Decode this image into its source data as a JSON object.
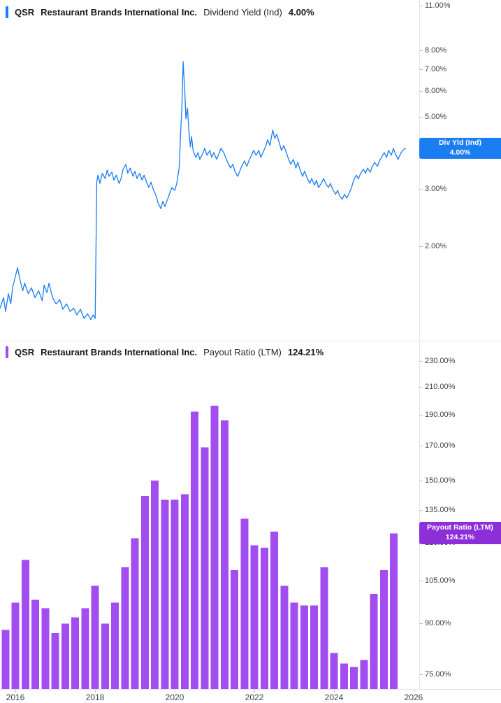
{
  "page": {
    "background": "#ffffff",
    "divider_color": "#e3e5e8",
    "axis_text_color": "#3e4147"
  },
  "top_chart": {
    "header": {
      "ticker": "QSR",
      "company": "Restaurant Brands International Inc.",
      "metric": "Dividend Yield (Ind)",
      "value": "4.00%"
    },
    "badge": {
      "line1": "Div Yld (Ind)",
      "line2": "4.00%",
      "color": "#1b7df2"
    }
  },
  "bottom_chart": {
    "header": {
      "ticker": "QSR",
      "company": "Restaurant Brands International Inc.",
      "metric": "Payout Ratio (LTM)",
      "value": "124.21%"
    },
    "badge": {
      "line1": "Payout Ratio (LTM)",
      "line2": "124.21%",
      "color": "#8d2fd9"
    }
  },
  "x_axis": {
    "labels": [
      "2016",
      "2018",
      "2020",
      "2022",
      "2024",
      "2026"
    ],
    "years": [
      2016,
      2018,
      2020,
      2022,
      2024,
      2026
    ]
  },
  "chart_data": [
    {
      "type": "line",
      "title": "QSR Dividend Yield (Ind)",
      "ylabel": "Dividend Yield (%)",
      "y_scale": "log",
      "grid": false,
      "legend_position": "none",
      "x_domain": [
        2015.61,
        2026.14
      ],
      "ylim": [
        1.025,
        11.43
      ],
      "current_value": 4.0,
      "y_ticks": [
        {
          "value": 11,
          "label": "11.00%"
        },
        {
          "value": 8,
          "label": "8.00%"
        },
        {
          "value": 7,
          "label": "7.00%"
        },
        {
          "value": 6,
          "label": "6.00%"
        },
        {
          "value": 5,
          "label": "5.00%"
        },
        {
          "value": 4,
          "label": "4.00%"
        },
        {
          "value": 3,
          "label": "3.00%"
        },
        {
          "value": 2,
          "label": "2.00%"
        }
      ],
      "series": [
        {
          "name": "Div Yld (Ind)",
          "color": "#1b7df2",
          "points": [
            [
              2015.61,
              1.29
            ],
            [
              2015.7,
              1.39
            ],
            [
              2015.75,
              1.26
            ],
            [
              2015.82,
              1.43
            ],
            [
              2015.88,
              1.33
            ],
            [
              2015.93,
              1.5
            ],
            [
              2016.0,
              1.62
            ],
            [
              2016.05,
              1.72
            ],
            [
              2016.11,
              1.58
            ],
            [
              2016.18,
              1.46
            ],
            [
              2016.23,
              1.54
            ],
            [
              2016.32,
              1.43
            ],
            [
              2016.4,
              1.49
            ],
            [
              2016.49,
              1.39
            ],
            [
              2016.58,
              1.46
            ],
            [
              2016.67,
              1.36
            ],
            [
              2016.72,
              1.52
            ],
            [
              2016.79,
              1.44
            ],
            [
              2016.84,
              1.54
            ],
            [
              2016.93,
              1.39
            ],
            [
              2017.02,
              1.33
            ],
            [
              2017.11,
              1.37
            ],
            [
              2017.19,
              1.28
            ],
            [
              2017.28,
              1.33
            ],
            [
              2017.37,
              1.26
            ],
            [
              2017.46,
              1.29
            ],
            [
              2017.54,
              1.23
            ],
            [
              2017.63,
              1.28
            ],
            [
              2017.72,
              1.2
            ],
            [
              2017.81,
              1.24
            ],
            [
              2017.89,
              1.19
            ],
            [
              2017.95,
              1.23
            ],
            [
              2018.0,
              1.2
            ],
            [
              2018.04,
              3.15
            ],
            [
              2018.07,
              3.31
            ],
            [
              2018.12,
              3.12
            ],
            [
              2018.18,
              3.35
            ],
            [
              2018.25,
              3.23
            ],
            [
              2018.3,
              3.43
            ],
            [
              2018.35,
              3.28
            ],
            [
              2018.42,
              3.38
            ],
            [
              2018.47,
              3.19
            ],
            [
              2018.53,
              3.31
            ],
            [
              2018.6,
              3.12
            ],
            [
              2018.65,
              3.23
            ],
            [
              2018.7,
              3.45
            ],
            [
              2018.77,
              3.57
            ],
            [
              2018.82,
              3.35
            ],
            [
              2018.88,
              3.48
            ],
            [
              2018.95,
              3.28
            ],
            [
              2019.0,
              3.4
            ],
            [
              2019.05,
              3.23
            ],
            [
              2019.12,
              3.35
            ],
            [
              2019.18,
              3.19
            ],
            [
              2019.23,
              3.31
            ],
            [
              2019.3,
              3.12
            ],
            [
              2019.35,
              3.03
            ],
            [
              2019.4,
              3.15
            ],
            [
              2019.47,
              2.97
            ],
            [
              2019.53,
              2.86
            ],
            [
              2019.58,
              2.72
            ],
            [
              2019.65,
              2.61
            ],
            [
              2019.7,
              2.75
            ],
            [
              2019.75,
              2.65
            ],
            [
              2019.82,
              2.79
            ],
            [
              2019.88,
              2.93
            ],
            [
              2019.93,
              3.03
            ],
            [
              2020.0,
              2.97
            ],
            [
              2020.05,
              3.12
            ],
            [
              2020.11,
              3.48
            ],
            [
              2020.14,
              4.25
            ],
            [
              2020.18,
              5.44
            ],
            [
              2020.21,
              7.39
            ],
            [
              2020.25,
              6.0
            ],
            [
              2020.28,
              4.93
            ],
            [
              2020.32,
              5.31
            ],
            [
              2020.35,
              4.57
            ],
            [
              2020.39,
              4.04
            ],
            [
              2020.42,
              4.35
            ],
            [
              2020.46,
              3.94
            ],
            [
              2020.53,
              3.75
            ],
            [
              2020.58,
              3.88
            ],
            [
              2020.63,
              3.7
            ],
            [
              2020.7,
              3.85
            ],
            [
              2020.75,
              4.0
            ],
            [
              2020.81,
              3.81
            ],
            [
              2020.88,
              3.94
            ],
            [
              2020.93,
              3.75
            ],
            [
              2020.98,
              3.88
            ],
            [
              2021.05,
              3.7
            ],
            [
              2021.11,
              3.85
            ],
            [
              2021.16,
              4.0
            ],
            [
              2021.23,
              3.88
            ],
            [
              2021.28,
              3.75
            ],
            [
              2021.33,
              3.62
            ],
            [
              2021.4,
              3.48
            ],
            [
              2021.46,
              3.57
            ],
            [
              2021.51,
              3.4
            ],
            [
              2021.58,
              3.28
            ],
            [
              2021.63,
              3.4
            ],
            [
              2021.68,
              3.52
            ],
            [
              2021.75,
              3.66
            ],
            [
              2021.81,
              3.52
            ],
            [
              2021.86,
              3.66
            ],
            [
              2021.93,
              3.81
            ],
            [
              2021.98,
              3.94
            ],
            [
              2022.04,
              3.81
            ],
            [
              2022.11,
              3.94
            ],
            [
              2022.16,
              3.75
            ],
            [
              2022.21,
              3.88
            ],
            [
              2022.28,
              4.04
            ],
            [
              2022.33,
              4.25
            ],
            [
              2022.39,
              4.08
            ],
            [
              2022.46,
              4.55
            ],
            [
              2022.51,
              4.29
            ],
            [
              2022.56,
              4.42
            ],
            [
              2022.63,
              4.14
            ],
            [
              2022.68,
              3.94
            ],
            [
              2022.74,
              4.08
            ],
            [
              2022.81,
              3.85
            ],
            [
              2022.86,
              3.7
            ],
            [
              2022.91,
              3.57
            ],
            [
              2022.98,
              3.7
            ],
            [
              2023.04,
              3.48
            ],
            [
              2023.09,
              3.62
            ],
            [
              2023.16,
              3.4
            ],
            [
              2023.21,
              3.28
            ],
            [
              2023.26,
              3.4
            ],
            [
              2023.33,
              3.23
            ],
            [
              2023.39,
              3.12
            ],
            [
              2023.44,
              3.23
            ],
            [
              2023.51,
              3.08
            ],
            [
              2023.56,
              3.19
            ],
            [
              2023.61,
              3.03
            ],
            [
              2023.68,
              3.12
            ],
            [
              2023.74,
              3.23
            ],
            [
              2023.79,
              3.12
            ],
            [
              2023.86,
              3.03
            ],
            [
              2023.91,
              3.12
            ],
            [
              2023.96,
              3.0
            ],
            [
              2024.04,
              2.89
            ],
            [
              2024.09,
              2.97
            ],
            [
              2024.14,
              2.86
            ],
            [
              2024.21,
              2.79
            ],
            [
              2024.26,
              2.89
            ],
            [
              2024.32,
              2.81
            ],
            [
              2024.39,
              2.93
            ],
            [
              2024.44,
              3.03
            ],
            [
              2024.49,
              3.19
            ],
            [
              2024.56,
              3.31
            ],
            [
              2024.61,
              3.22
            ],
            [
              2024.67,
              3.35
            ],
            [
              2024.74,
              3.45
            ],
            [
              2024.79,
              3.35
            ],
            [
              2024.84,
              3.48
            ],
            [
              2024.91,
              3.38
            ],
            [
              2024.96,
              3.52
            ],
            [
              2025.02,
              3.62
            ],
            [
              2025.09,
              3.52
            ],
            [
              2025.14,
              3.66
            ],
            [
              2025.19,
              3.75
            ],
            [
              2025.26,
              3.88
            ],
            [
              2025.32,
              3.75
            ],
            [
              2025.37,
              3.94
            ],
            [
              2025.44,
              3.81
            ],
            [
              2025.49,
              4.0
            ],
            [
              2025.54,
              3.85
            ],
            [
              2025.61,
              3.7
            ],
            [
              2025.67,
              3.85
            ],
            [
              2025.72,
              3.94
            ],
            [
              2025.79,
              4.0
            ]
          ]
        }
      ]
    },
    {
      "type": "bar",
      "title": "QSR Payout Ratio (LTM)",
      "ylabel": "Payout Ratio (%)",
      "y_scale": "log",
      "grid": false,
      "legend_position": "none",
      "x_domain": [
        2015.61,
        2026.14
      ],
      "ylim": [
        71.2,
        247.5
      ],
      "current_value": 124.21,
      "bar_color": "#a14df0",
      "y_ticks": [
        {
          "value": 230,
          "label": "230.00%"
        },
        {
          "value": 210,
          "label": "210.00%"
        },
        {
          "value": 190,
          "label": "190.00%"
        },
        {
          "value": 170,
          "label": "170.00%"
        },
        {
          "value": 150,
          "label": "150.00%"
        },
        {
          "value": 135,
          "label": "135.00%"
        },
        {
          "value": 120,
          "label": "120.00%"
        },
        {
          "value": 105,
          "label": "105.00%"
        },
        {
          "value": 90,
          "label": "90.00%"
        },
        {
          "value": 75,
          "label": "75.00%"
        }
      ],
      "x": [
        2015.75,
        2016.0,
        2016.25,
        2016.5,
        2016.75,
        2017.0,
        2017.25,
        2017.5,
        2017.75,
        2018.0,
        2018.25,
        2018.5,
        2018.75,
        2019.0,
        2019.25,
        2019.5,
        2019.75,
        2020.0,
        2020.25,
        2020.5,
        2020.75,
        2021.0,
        2021.25,
        2021.5,
        2021.75,
        2022.0,
        2022.25,
        2022.5,
        2022.75,
        2023.0,
        2023.25,
        2023.5,
        2023.75,
        2024.0,
        2024.25,
        2024.5,
        2024.75,
        2025.0,
        2025.25,
        2025.5
      ],
      "values": [
        88,
        97,
        113,
        98,
        95,
        87,
        90,
        92,
        95,
        103,
        90,
        97,
        110,
        122,
        142,
        150,
        140,
        140,
        143,
        192,
        169,
        196,
        186,
        109,
        131,
        119,
        118,
        125,
        103,
        97,
        96,
        96,
        110,
        81,
        78,
        77,
        79,
        100,
        109,
        124.21
      ]
    }
  ]
}
